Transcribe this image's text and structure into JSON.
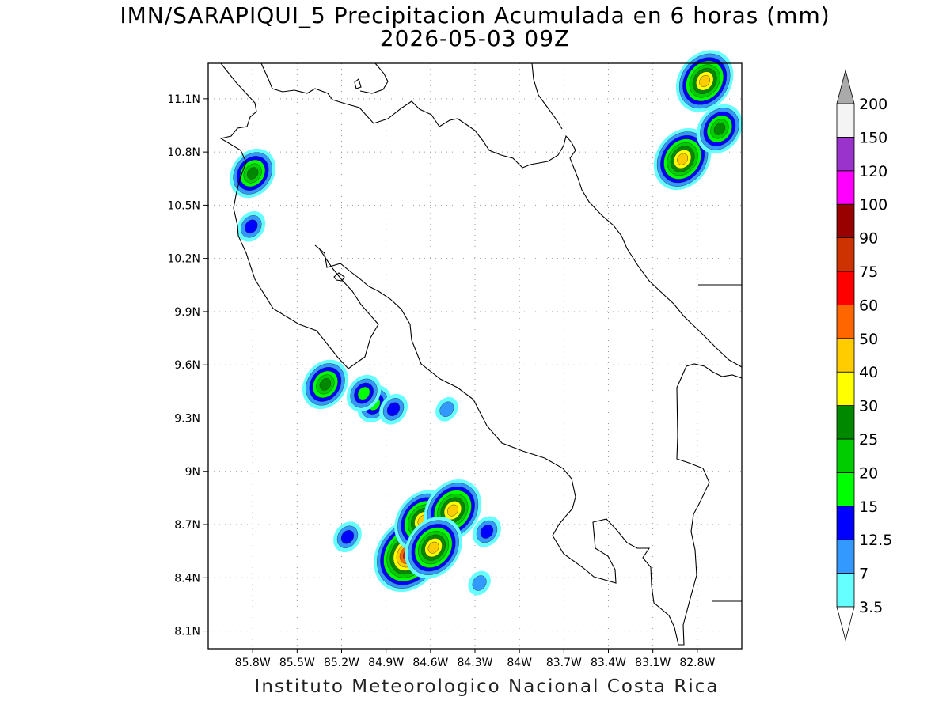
{
  "title": {
    "line1": "IMN/SARAPIQUI_5 Precipitacion Acumulada en 6 horas (mm)",
    "line2": "2026-05-03 09Z"
  },
  "footer": "Instituto Meteorologico Nacional Costa Rica",
  "chart_data": {
    "type": "heatmap",
    "variable": "Precipitacion Acumulada en 6 horas (mm)",
    "xlim": [
      -86.1,
      -82.5
    ],
    "ylim": [
      8.0,
      11.3
    ],
    "x_ticks": [
      {
        "value": -85.8,
        "label": "85.8W"
      },
      {
        "value": -85.5,
        "label": "85.5W"
      },
      {
        "value": -85.2,
        "label": "85.2W"
      },
      {
        "value": -84.9,
        "label": "84.9W"
      },
      {
        "value": -84.6,
        "label": "84.6W"
      },
      {
        "value": -84.3,
        "label": "84.3W"
      },
      {
        "value": -84.0,
        "label": "84W"
      },
      {
        "value": -83.7,
        "label": "83.7W"
      },
      {
        "value": -83.4,
        "label": "83.4W"
      },
      {
        "value": -83.1,
        "label": "83.1W"
      },
      {
        "value": -82.8,
        "label": "82.8W"
      }
    ],
    "y_ticks": [
      {
        "value": 11.1,
        "label": "11.1N"
      },
      {
        "value": 10.8,
        "label": "10.8N"
      },
      {
        "value": 10.5,
        "label": "10.5N"
      },
      {
        "value": 10.2,
        "label": "10.2N"
      },
      {
        "value": 9.9,
        "label": "9.9N"
      },
      {
        "value": 9.6,
        "label": "9.6N"
      },
      {
        "value": 9.3,
        "label": "9.3N"
      },
      {
        "value": 9.0,
        "label": "9N"
      },
      {
        "value": 8.7,
        "label": "8.7N"
      },
      {
        "value": 8.4,
        "label": "8.4N"
      },
      {
        "value": 8.1,
        "label": "8.1N"
      }
    ],
    "grid": true,
    "colorbar": {
      "levels": [
        "3.5",
        "7",
        "12.5",
        "15",
        "20",
        "25",
        "30",
        "40",
        "50",
        "60",
        "75",
        "90",
        "100",
        "120",
        "150",
        "200"
      ],
      "colors": [
        "#ffffff",
        "#66ffff",
        "#3399ff",
        "#0000ff",
        "#00ff00",
        "#00cc00",
        "#008800",
        "#ffff00",
        "#ffcc00",
        "#ff6600",
        "#ff0000",
        "#cc3300",
        "#990000",
        "#ff00ff",
        "#9933cc",
        "#f4f4f4",
        "#aaaaaa"
      ]
    },
    "features": [
      {
        "lon": -84.75,
        "lat": 8.53,
        "peak": 60
      },
      {
        "lon": -84.65,
        "lat": 8.72,
        "peak": 40
      },
      {
        "lon": -84.45,
        "lat": 8.78,
        "peak": 40
      },
      {
        "lon": -84.58,
        "lat": 8.57,
        "peak": 40
      },
      {
        "lon": -82.9,
        "lat": 10.76,
        "peak": 40
      },
      {
        "lon": -82.75,
        "lat": 11.2,
        "peak": 40
      },
      {
        "lon": -82.65,
        "lat": 10.93,
        "peak": 25
      },
      {
        "lon": -85.8,
        "lat": 10.68,
        "peak": 25
      },
      {
        "lon": -85.31,
        "lat": 9.49,
        "peak": 25
      },
      {
        "lon": -84.98,
        "lat": 9.38,
        "peak": 15
      },
      {
        "lon": -85.05,
        "lat": 9.44,
        "peak": 15
      },
      {
        "lon": -84.85,
        "lat": 9.35,
        "peak": 12.5
      },
      {
        "lon": -84.49,
        "lat": 9.35,
        "peak": 7
      },
      {
        "lon": -84.22,
        "lat": 8.66,
        "peak": 12.5
      },
      {
        "lon": -84.27,
        "lat": 8.37,
        "peak": 7
      },
      {
        "lon": -85.16,
        "lat": 8.63,
        "peak": 12.5
      },
      {
        "lon": -85.81,
        "lat": 10.38,
        "peak": 12.5
      }
    ]
  }
}
